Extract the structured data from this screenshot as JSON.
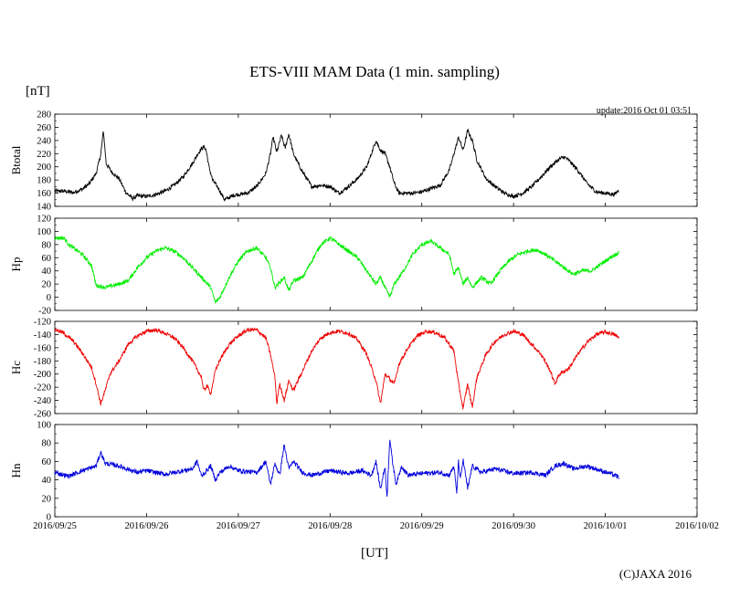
{
  "chart_data": {
    "type": "line",
    "title": "ETS-VIII MAM Data (1 min. sampling)",
    "y_unit": "[nT]",
    "x_unit": "[UT]",
    "update": "update:2016 Oct 01 03:51",
    "copyright": "(C)JAXA 2016",
    "x_ticks": [
      "2016/09/25",
      "2016/09/26",
      "2016/09/27",
      "2016/09/28",
      "2016/09/29",
      "2016/09/30",
      "2016/10/01",
      "2016/10/02"
    ],
    "x_range_days": [
      0,
      7
    ],
    "panels": [
      {
        "name": "Btotal",
        "color": "#000000",
        "ylim": [
          140,
          280
        ],
        "yticks": [
          140,
          160,
          180,
          200,
          220,
          240,
          260,
          280
        ],
        "noise": 3,
        "points": [
          [
            0,
            163
          ],
          [
            0.1,
            163
          ],
          [
            0.2,
            161
          ],
          [
            0.3,
            166
          ],
          [
            0.38,
            175
          ],
          [
            0.45,
            190
          ],
          [
            0.5,
            218
          ],
          [
            0.53,
            255
          ],
          [
            0.56,
            205
          ],
          [
            0.62,
            192
          ],
          [
            0.7,
            182
          ],
          [
            0.78,
            160
          ],
          [
            0.85,
            152
          ],
          [
            0.9,
            156
          ],
          [
            1.0,
            155
          ],
          [
            1.1,
            158
          ],
          [
            1.2,
            163
          ],
          [
            1.3,
            172
          ],
          [
            1.4,
            185
          ],
          [
            1.5,
            205
          ],
          [
            1.55,
            218
          ],
          [
            1.6,
            228
          ],
          [
            1.63,
            230
          ],
          [
            1.65,
            225
          ],
          [
            1.68,
            200
          ],
          [
            1.72,
            180
          ],
          [
            1.78,
            168
          ],
          [
            1.85,
            150
          ],
          [
            1.95,
            157
          ],
          [
            2.1,
            160
          ],
          [
            2.2,
            170
          ],
          [
            2.3,
            190
          ],
          [
            2.35,
            220
          ],
          [
            2.38,
            245
          ],
          [
            2.42,
            222
          ],
          [
            2.47,
            248
          ],
          [
            2.51,
            228
          ],
          [
            2.55,
            250
          ],
          [
            2.6,
            220
          ],
          [
            2.7,
            192
          ],
          [
            2.8,
            170
          ],
          [
            2.9,
            172
          ],
          [
            3.0,
            170
          ],
          [
            3.1,
            160
          ],
          [
            3.2,
            170
          ],
          [
            3.3,
            182
          ],
          [
            3.4,
            200
          ],
          [
            3.5,
            240
          ],
          [
            3.55,
            225
          ],
          [
            3.6,
            220
          ],
          [
            3.65,
            200
          ],
          [
            3.7,
            175
          ],
          [
            3.75,
            160
          ],
          [
            3.9,
            160
          ],
          [
            4.0,
            162
          ],
          [
            4.2,
            172
          ],
          [
            4.3,
            195
          ],
          [
            4.4,
            245
          ],
          [
            4.45,
            225
          ],
          [
            4.5,
            255
          ],
          [
            4.55,
            240
          ],
          [
            4.6,
            210
          ],
          [
            4.7,
            182
          ],
          [
            4.8,
            170
          ],
          [
            4.9,
            160
          ],
          [
            5.0,
            155
          ],
          [
            5.1,
            160
          ],
          [
            5.2,
            170
          ],
          [
            5.3,
            185
          ],
          [
            5.4,
            200
          ],
          [
            5.5,
            212
          ],
          [
            5.55,
            215
          ],
          [
            5.6,
            210
          ],
          [
            5.7,
            195
          ],
          [
            5.8,
            175
          ],
          [
            5.9,
            162
          ],
          [
            6.0,
            160
          ],
          [
            6.1,
            158
          ],
          [
            6.15,
            165
          ]
        ]
      },
      {
        "name": "Hp",
        "color": "#00ee00",
        "ylim": [
          -20,
          120
        ],
        "yticks": [
          -20,
          0,
          20,
          40,
          60,
          80,
          100,
          120
        ],
        "noise": 3,
        "points": [
          [
            0,
            90
          ],
          [
            0.1,
            90
          ],
          [
            0.15,
            80
          ],
          [
            0.2,
            75
          ],
          [
            0.3,
            65
          ],
          [
            0.4,
            48
          ],
          [
            0.45,
            18
          ],
          [
            0.55,
            15
          ],
          [
            0.7,
            20
          ],
          [
            0.8,
            25
          ],
          [
            0.9,
            45
          ],
          [
            1.0,
            60
          ],
          [
            1.1,
            70
          ],
          [
            1.2,
            75
          ],
          [
            1.3,
            70
          ],
          [
            1.4,
            60
          ],
          [
            1.5,
            45
          ],
          [
            1.6,
            30
          ],
          [
            1.7,
            15
          ],
          [
            1.75,
            -8
          ],
          [
            1.8,
            0
          ],
          [
            1.9,
            30
          ],
          [
            2.0,
            55
          ],
          [
            2.1,
            70
          ],
          [
            2.2,
            75
          ],
          [
            2.3,
            60
          ],
          [
            2.35,
            45
          ],
          [
            2.4,
            15
          ],
          [
            2.5,
            30
          ],
          [
            2.55,
            10
          ],
          [
            2.6,
            25
          ],
          [
            2.7,
            30
          ],
          [
            2.8,
            55
          ],
          [
            2.9,
            80
          ],
          [
            3.0,
            90
          ],
          [
            3.1,
            80
          ],
          [
            3.2,
            70
          ],
          [
            3.3,
            60
          ],
          [
            3.4,
            40
          ],
          [
            3.5,
            20
          ],
          [
            3.55,
            30
          ],
          [
            3.65,
            0
          ],
          [
            3.7,
            20
          ],
          [
            3.8,
            40
          ],
          [
            3.9,
            65
          ],
          [
            4.0,
            80
          ],
          [
            4.1,
            85
          ],
          [
            4.2,
            75
          ],
          [
            4.3,
            65
          ],
          [
            4.35,
            35
          ],
          [
            4.4,
            45
          ],
          [
            4.45,
            20
          ],
          [
            4.5,
            30
          ],
          [
            4.55,
            15
          ],
          [
            4.65,
            30
          ],
          [
            4.75,
            20
          ],
          [
            4.85,
            40
          ],
          [
            4.95,
            55
          ],
          [
            5.05,
            65
          ],
          [
            5.15,
            70
          ],
          [
            5.25,
            72
          ],
          [
            5.35,
            65
          ],
          [
            5.45,
            55
          ],
          [
            5.55,
            45
          ],
          [
            5.65,
            35
          ],
          [
            5.75,
            40
          ],
          [
            5.85,
            40
          ],
          [
            5.95,
            50
          ],
          [
            6.05,
            60
          ],
          [
            6.15,
            68
          ]
        ]
      },
      {
        "name": "Hc",
        "color": "#ee0000",
        "ylim": [
          -260,
          -120
        ],
        "yticks": [
          -260,
          -240,
          -220,
          -200,
          -180,
          -160,
          -140,
          -120
        ],
        "noise": 3,
        "points": [
          [
            0,
            -132
          ],
          [
            0.1,
            -138
          ],
          [
            0.2,
            -150
          ],
          [
            0.3,
            -168
          ],
          [
            0.4,
            -190
          ],
          [
            0.45,
            -215
          ],
          [
            0.5,
            -245
          ],
          [
            0.55,
            -225
          ],
          [
            0.6,
            -200
          ],
          [
            0.7,
            -180
          ],
          [
            0.8,
            -155
          ],
          [
            0.9,
            -142
          ],
          [
            1.0,
            -135
          ],
          [
            1.1,
            -133
          ],
          [
            1.2,
            -138
          ],
          [
            1.3,
            -145
          ],
          [
            1.4,
            -160
          ],
          [
            1.5,
            -180
          ],
          [
            1.6,
            -205
          ],
          [
            1.62,
            -225
          ],
          [
            1.66,
            -218
          ],
          [
            1.7,
            -230
          ],
          [
            1.75,
            -195
          ],
          [
            1.8,
            -178
          ],
          [
            1.9,
            -155
          ],
          [
            2.0,
            -142
          ],
          [
            2.1,
            -133
          ],
          [
            2.2,
            -133
          ],
          [
            2.3,
            -145
          ],
          [
            2.35,
            -170
          ],
          [
            2.4,
            -205
          ],
          [
            2.42,
            -245
          ],
          [
            2.45,
            -215
          ],
          [
            2.5,
            -240
          ],
          [
            2.55,
            -210
          ],
          [
            2.6,
            -225
          ],
          [
            2.7,
            -195
          ],
          [
            2.8,
            -165
          ],
          [
            2.9,
            -145
          ],
          [
            3.0,
            -137
          ],
          [
            3.1,
            -135
          ],
          [
            3.2,
            -138
          ],
          [
            3.3,
            -148
          ],
          [
            3.4,
            -170
          ],
          [
            3.5,
            -210
          ],
          [
            3.55,
            -245
          ],
          [
            3.6,
            -200
          ],
          [
            3.7,
            -215
          ],
          [
            3.75,
            -185
          ],
          [
            3.85,
            -160
          ],
          [
            3.95,
            -142
          ],
          [
            4.05,
            -135
          ],
          [
            4.15,
            -137
          ],
          [
            4.25,
            -145
          ],
          [
            4.35,
            -165
          ],
          [
            4.4,
            -215
          ],
          [
            4.45,
            -252
          ],
          [
            4.5,
            -215
          ],
          [
            4.55,
            -250
          ],
          [
            4.6,
            -205
          ],
          [
            4.7,
            -170
          ],
          [
            4.8,
            -150
          ],
          [
            4.9,
            -140
          ],
          [
            5.0,
            -135
          ],
          [
            5.1,
            -140
          ],
          [
            5.2,
            -155
          ],
          [
            5.3,
            -170
          ],
          [
            5.4,
            -195
          ],
          [
            5.45,
            -215
          ],
          [
            5.5,
            -200
          ],
          [
            5.6,
            -192
          ],
          [
            5.7,
            -170
          ],
          [
            5.8,
            -152
          ],
          [
            5.9,
            -140
          ],
          [
            6.0,
            -136
          ],
          [
            6.1,
            -140
          ],
          [
            6.15,
            -145
          ]
        ]
      },
      {
        "name": "Hn",
        "color": "#0000dd",
        "ylim": [
          0,
          100
        ],
        "yticks": [
          0,
          20,
          40,
          60,
          80,
          100
        ],
        "noise": 2.5,
        "points": [
          [
            0,
            48
          ],
          [
            0.15,
            44
          ],
          [
            0.3,
            50
          ],
          [
            0.45,
            55
          ],
          [
            0.5,
            70
          ],
          [
            0.55,
            58
          ],
          [
            0.7,
            55
          ],
          [
            0.9,
            48
          ],
          [
            1.0,
            50
          ],
          [
            1.2,
            46
          ],
          [
            1.4,
            50
          ],
          [
            1.5,
            52
          ],
          [
            1.55,
            60
          ],
          [
            1.6,
            44
          ],
          [
            1.7,
            55
          ],
          [
            1.75,
            40
          ],
          [
            1.8,
            48
          ],
          [
            1.9,
            55
          ],
          [
            2.0,
            50
          ],
          [
            2.2,
            48
          ],
          [
            2.3,
            60
          ],
          [
            2.35,
            35
          ],
          [
            2.4,
            58
          ],
          [
            2.45,
            45
          ],
          [
            2.5,
            78
          ],
          [
            2.55,
            52
          ],
          [
            2.6,
            60
          ],
          [
            2.7,
            48
          ],
          [
            2.8,
            45
          ],
          [
            3.0,
            50
          ],
          [
            3.2,
            47
          ],
          [
            3.35,
            50
          ],
          [
            3.45,
            45
          ],
          [
            3.5,
            60
          ],
          [
            3.55,
            30
          ],
          [
            3.6,
            55
          ],
          [
            3.62,
            20
          ],
          [
            3.65,
            85
          ],
          [
            3.68,
            60
          ],
          [
            3.72,
            35
          ],
          [
            3.78,
            55
          ],
          [
            3.85,
            45
          ],
          [
            4.0,
            47
          ],
          [
            4.2,
            48
          ],
          [
            4.3,
            45
          ],
          [
            4.35,
            55
          ],
          [
            4.38,
            25
          ],
          [
            4.4,
            60
          ],
          [
            4.42,
            40
          ],
          [
            4.45,
            62
          ],
          [
            4.5,
            30
          ],
          [
            4.55,
            55
          ],
          [
            4.65,
            48
          ],
          [
            4.8,
            52
          ],
          [
            5.0,
            47
          ],
          [
            5.2,
            48
          ],
          [
            5.35,
            45
          ],
          [
            5.45,
            55
          ],
          [
            5.55,
            58
          ],
          [
            5.65,
            52
          ],
          [
            5.8,
            55
          ],
          [
            5.95,
            50
          ],
          [
            6.05,
            47
          ],
          [
            6.15,
            43
          ]
        ]
      }
    ]
  }
}
